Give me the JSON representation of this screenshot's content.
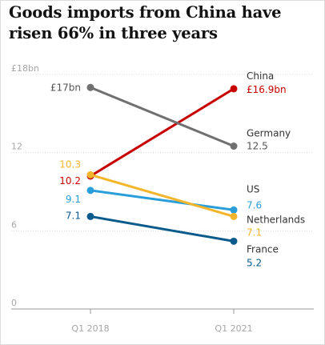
{
  "title": "Goods imports from China have risen 66% in three years",
  "chart_data": {
    "type": "line",
    "x": [
      "Q1 2018",
      "Q1 2021"
    ],
    "ylim": [
      0,
      18
    ],
    "yticks": [
      {
        "value": 0,
        "label": "0"
      },
      {
        "value": 6,
        "label": "6"
      },
      {
        "value": 12,
        "label": "12"
      },
      {
        "value": 18,
        "label": "£18bn"
      }
    ],
    "grid": true,
    "series": [
      {
        "name": "China",
        "color": "#c70000",
        "values": [
          10.2,
          16.9
        ],
        "labels": [
          "10.2",
          "£16.9bn"
        ]
      },
      {
        "name": "Germany",
        "color": "#707070",
        "values": [
          17,
          12.5
        ],
        "labels": [
          "£17bn",
          "12.5"
        ]
      },
      {
        "name": "US",
        "color": "#2a9ed9",
        "values": [
          9.1,
          7.6
        ],
        "labels": [
          "9.1",
          "7.6"
        ]
      },
      {
        "name": "Netherlands",
        "color": "#f3b52b",
        "values": [
          10.3,
          7.1
        ],
        "labels": [
          "10.3",
          "7.1"
        ]
      },
      {
        "name": "France",
        "color": "#0a5a8c",
        "values": [
          7.1,
          5.2
        ],
        "labels": [
          "7.1",
          "5.2"
        ]
      }
    ]
  }
}
